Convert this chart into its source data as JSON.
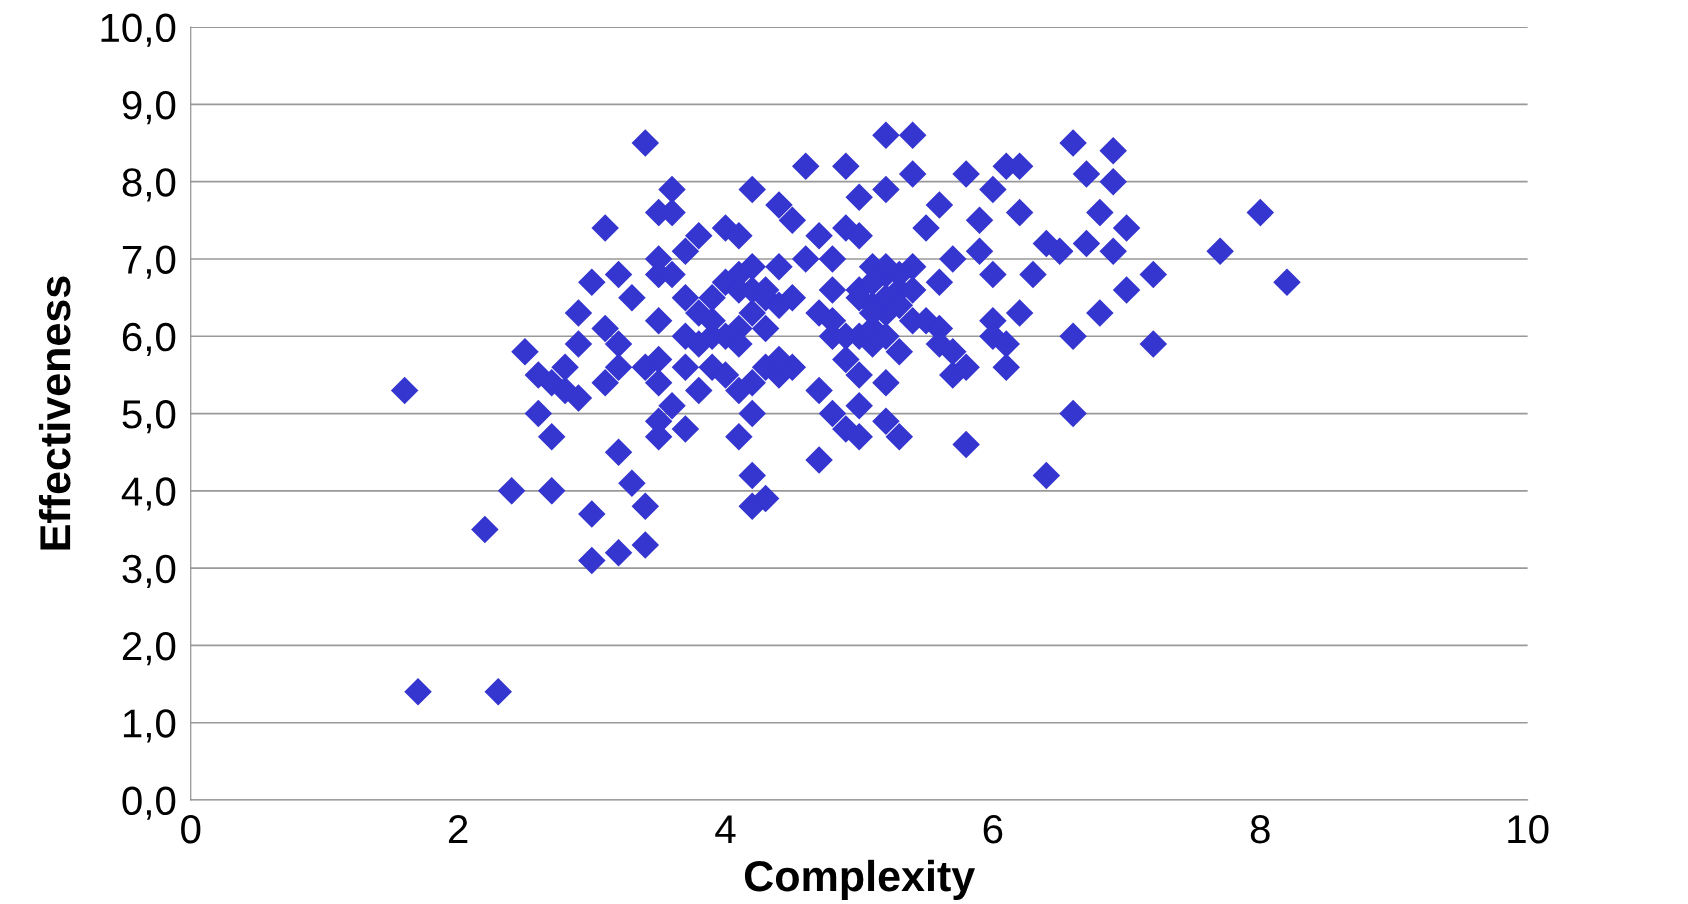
{
  "chart_data": {
    "type": "scatter",
    "xlabel": "Complexity",
    "ylabel": "Effectiveness",
    "xlim": [
      0,
      10
    ],
    "xticks": [
      0,
      2,
      4,
      6,
      8,
      10
    ],
    "ylim": [
      0,
      10
    ],
    "yticks": [
      {
        "value": 0,
        "label": "0,0"
      },
      {
        "value": 1,
        "label": "1,0"
      },
      {
        "value": 2,
        "label": "2,0"
      },
      {
        "value": 3,
        "label": "3,0"
      },
      {
        "value": 4,
        "label": "4,0"
      },
      {
        "value": 5,
        "label": "5,0"
      },
      {
        "value": 6,
        "label": "6,0"
      },
      {
        "value": 7,
        "label": "7,0"
      },
      {
        "value": 8,
        "label": "8,0"
      },
      {
        "value": 9,
        "label": "9,0"
      },
      {
        "value": 10,
        "label": "10,0"
      }
    ],
    "grid": "y",
    "marker": "diamond",
    "series": [
      {
        "color": "#3535d0",
        "x": [
          1.6,
          1.7,
          2.3,
          2.2,
          2.4,
          2.5,
          2.6,
          2.6,
          2.7,
          2.7,
          2.7,
          2.8,
          2.8,
          2.9,
          2.9,
          2.9,
          3.0,
          3.0,
          3.0,
          3.1,
          3.1,
          3.1,
          3.2,
          3.2,
          3.2,
          3.2,
          3.2,
          3.3,
          3.3,
          3.4,
          3.4,
          3.4,
          3.4,
          3.5,
          3.5,
          3.5,
          3.5,
          3.5,
          3.5,
          3.5,
          3.5,
          3.6,
          3.6,
          3.6,
          3.6,
          3.7,
          3.7,
          3.7,
          3.7,
          3.7,
          3.8,
          3.8,
          3.8,
          3.8,
          3.9,
          3.9,
          3.9,
          4.0,
          4.0,
          4.0,
          4.1,
          4.1,
          4.1,
          4.1,
          4.1,
          4.2,
          4.2,
          4.2,
          4.2,
          4.2,
          4.2,
          4.3,
          4.3,
          4.3,
          4.3,
          4.4,
          4.4,
          4.4,
          4.4,
          4.5,
          4.5,
          4.5,
          4.6,
          4.6,
          4.7,
          4.7,
          4.7,
          4.7,
          4.8,
          4.8,
          4.8,
          4.8,
          4.9,
          4.9,
          4.9,
          4.9,
          5.0,
          5.0,
          5.0,
          5.0,
          5.0,
          5.0,
          5.0,
          5.1,
          5.1,
          5.1,
          5.2,
          5.2,
          5.2,
          5.2,
          5.2,
          5.2,
          5.3,
          5.3,
          5.3,
          5.4,
          5.4,
          5.4,
          5.4,
          5.5,
          5.5,
          5.6,
          5.6,
          5.6,
          5.7,
          5.7,
          5.8,
          5.8,
          5.8,
          5.9,
          5.9,
          6.0,
          6.0,
          6.0,
          6.0,
          6.1,
          6.1,
          6.1,
          6.2,
          6.2,
          6.2,
          6.3,
          6.4,
          6.4,
          6.5,
          6.6,
          6.6,
          6.6,
          6.7,
          6.7,
          6.8,
          6.8,
          6.9,
          6.9,
          6.9,
          7.0,
          7.0,
          7.2,
          7.2,
          7.7,
          8.0,
          8.2,
          5.1,
          5.2,
          5.3,
          5.1,
          5.2,
          5.0,
          5.3,
          5.4,
          5.2,
          5.1,
          4.0,
          3.9,
          4.1,
          4.2,
          4.3,
          4.1,
          4.2,
          4.4,
          4.8,
          4.9,
          5.6,
          5.7
        ],
        "values": [
          5.3,
          1.4,
          1.4,
          3.5,
          4.0,
          5.8,
          5.5,
          5.0,
          4.0,
          4.7,
          5.4,
          5.6,
          5.3,
          6.3,
          5.9,
          5.2,
          6.7,
          3.7,
          3.1,
          7.4,
          6.1,
          5.4,
          6.8,
          5.9,
          5.6,
          4.5,
          3.2,
          6.5,
          4.1,
          8.5,
          5.6,
          3.8,
          3.3,
          7.6,
          7.0,
          6.8,
          6.2,
          5.7,
          5.4,
          4.9,
          4.7,
          7.9,
          7.6,
          6.8,
          5.1,
          7.1,
          6.5,
          6.0,
          5.6,
          4.8,
          7.3,
          6.3,
          5.9,
          5.3,
          6.5,
          6.0,
          5.6,
          7.4,
          6.7,
          5.5,
          7.3,
          6.8,
          6.1,
          5.3,
          4.7,
          7.9,
          6.9,
          6.3,
          5.0,
          4.2,
          3.8,
          6.5,
          6.1,
          5.6,
          3.9,
          7.7,
          6.9,
          6.4,
          5.5,
          7.5,
          6.5,
          5.6,
          8.2,
          7.0,
          7.3,
          6.3,
          5.3,
          4.4,
          7.0,
          6.6,
          6.0,
          5.0,
          8.2,
          7.4,
          5.7,
          4.8,
          7.8,
          7.3,
          6.6,
          6.0,
          5.5,
          5.1,
          4.7,
          6.9,
          6.4,
          5.9,
          8.6,
          7.9,
          6.8,
          6.3,
          5.4,
          4.9,
          6.6,
          5.8,
          4.7,
          8.6,
          8.1,
          6.9,
          6.2,
          7.4,
          6.2,
          7.7,
          6.7,
          6.1,
          7.0,
          5.5,
          8.1,
          5.6,
          4.6,
          7.1,
          7.5,
          7.9,
          6.8,
          6.2,
          6.0,
          8.2,
          5.9,
          5.6,
          8.2,
          7.6,
          6.3,
          6.8,
          7.2,
          4.2,
          7.1,
          8.5,
          6.0,
          5.0,
          8.1,
          7.2,
          7.6,
          6.3,
          8.4,
          8.0,
          7.1,
          7.4,
          6.6,
          6.8,
          5.9,
          7.1,
          7.6,
          6.7,
          6.7,
          6.5,
          6.8,
          6.1,
          6.0,
          6.5,
          6.4,
          6.6,
          6.9,
          6.3,
          6.0,
          6.2,
          6.6,
          6.6,
          6.6,
          5.9,
          5.4,
          5.7,
          6.2,
          6.0,
          5.9,
          5.8
        ]
      }
    ]
  }
}
